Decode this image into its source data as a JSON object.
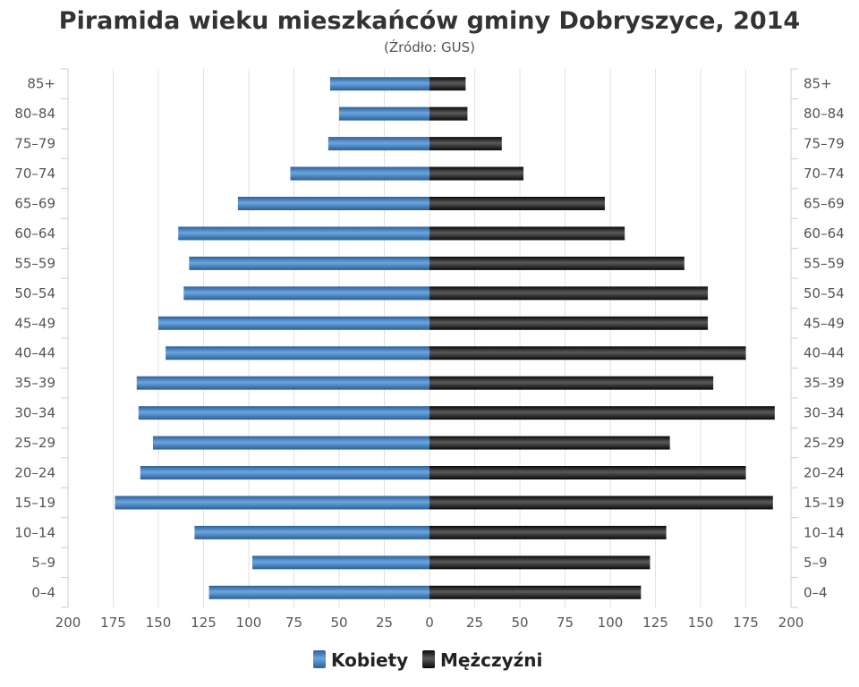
{
  "title": "Piramida wieku mieszkańców gminy Dobryszyce, 2014",
  "subtitle": "(Źródło: GUS)",
  "colors": {
    "female": "#3d7ec0",
    "male": "#1a1a1a",
    "grid": "#e2e2e2"
  },
  "chart_data": {
    "type": "bar",
    "orientation": "horizontal",
    "title": "Piramida wieku mieszkańców gminy Dobryszyce, 2014",
    "subtitle": "(Źródło: GUS)",
    "categories": [
      "85+",
      "80–84",
      "75–79",
      "70–74",
      "65–69",
      "60–64",
      "55–59",
      "50–54",
      "45–49",
      "40–44",
      "35–39",
      "30–34",
      "25–29",
      "20–24",
      "15–19",
      "10–14",
      "5–9",
      "0–4"
    ],
    "series": [
      {
        "name": "Kobiety",
        "color": "#3d7ec0",
        "values": [
          55,
          50,
          56,
          77,
          106,
          139,
          133,
          136,
          150,
          146,
          162,
          161,
          153,
          160,
          174,
          130,
          98,
          122
        ]
      },
      {
        "name": "Mężczyźni",
        "color": "#1a1a1a",
        "values": [
          20,
          21,
          40,
          52,
          97,
          108,
          141,
          154,
          154,
          175,
          157,
          191,
          133,
          175,
          190,
          131,
          122,
          117
        ]
      }
    ],
    "xlim": [
      -200,
      200
    ],
    "xticks": [
      "200",
      "175",
      "150",
      "125",
      "100",
      "75",
      "50",
      "25",
      "0",
      "25",
      "50",
      "75",
      "100",
      "125",
      "150",
      "175",
      "200"
    ],
    "grid": true,
    "legend": "bottom-center"
  }
}
